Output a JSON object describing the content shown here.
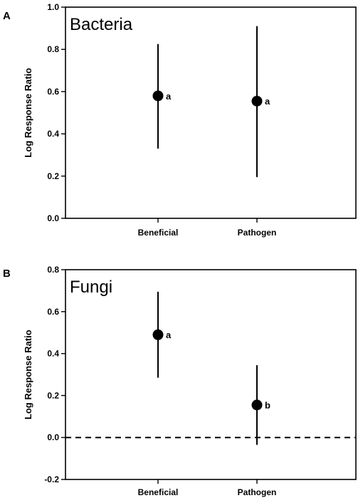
{
  "chart_data": [
    {
      "panel_letter": "A",
      "type": "scatter",
      "title": "Bacteria",
      "xlabel": "",
      "ylabel": "Log Response Ratio",
      "ylim": [
        0.0,
        1.0
      ],
      "yticks": [
        0.0,
        0.2,
        0.4,
        0.6,
        0.8,
        1.0
      ],
      "ytick_labels": [
        "0.0",
        "0.2",
        "0.4",
        "0.6",
        "0.8",
        "1.0"
      ],
      "categories": [
        "Beneficial",
        "Pathogen"
      ],
      "values": [
        0.58,
        0.555
      ],
      "error_low": [
        0.33,
        0.195
      ],
      "error_high": [
        0.825,
        0.91
      ],
      "point_labels": [
        "a",
        "a"
      ],
      "reference_line": null
    },
    {
      "panel_letter": "B",
      "type": "scatter",
      "title": "Fungi",
      "xlabel": "",
      "ylabel": "Log Response Ratio",
      "ylim": [
        -0.2,
        0.8
      ],
      "yticks": [
        -0.2,
        0.0,
        0.2,
        0.4,
        0.6,
        0.8
      ],
      "ytick_labels": [
        "-0.2",
        "0.0",
        "0.2",
        "0.4",
        "0.6",
        "0.8"
      ],
      "categories": [
        "Beneficial",
        "Pathogen"
      ],
      "values": [
        0.49,
        0.155
      ],
      "error_low": [
        0.285,
        -0.035
      ],
      "error_high": [
        0.695,
        0.345
      ],
      "point_labels": [
        "a",
        "b"
      ],
      "reference_line": {
        "y": 0.0,
        "style": "dashed"
      }
    }
  ]
}
